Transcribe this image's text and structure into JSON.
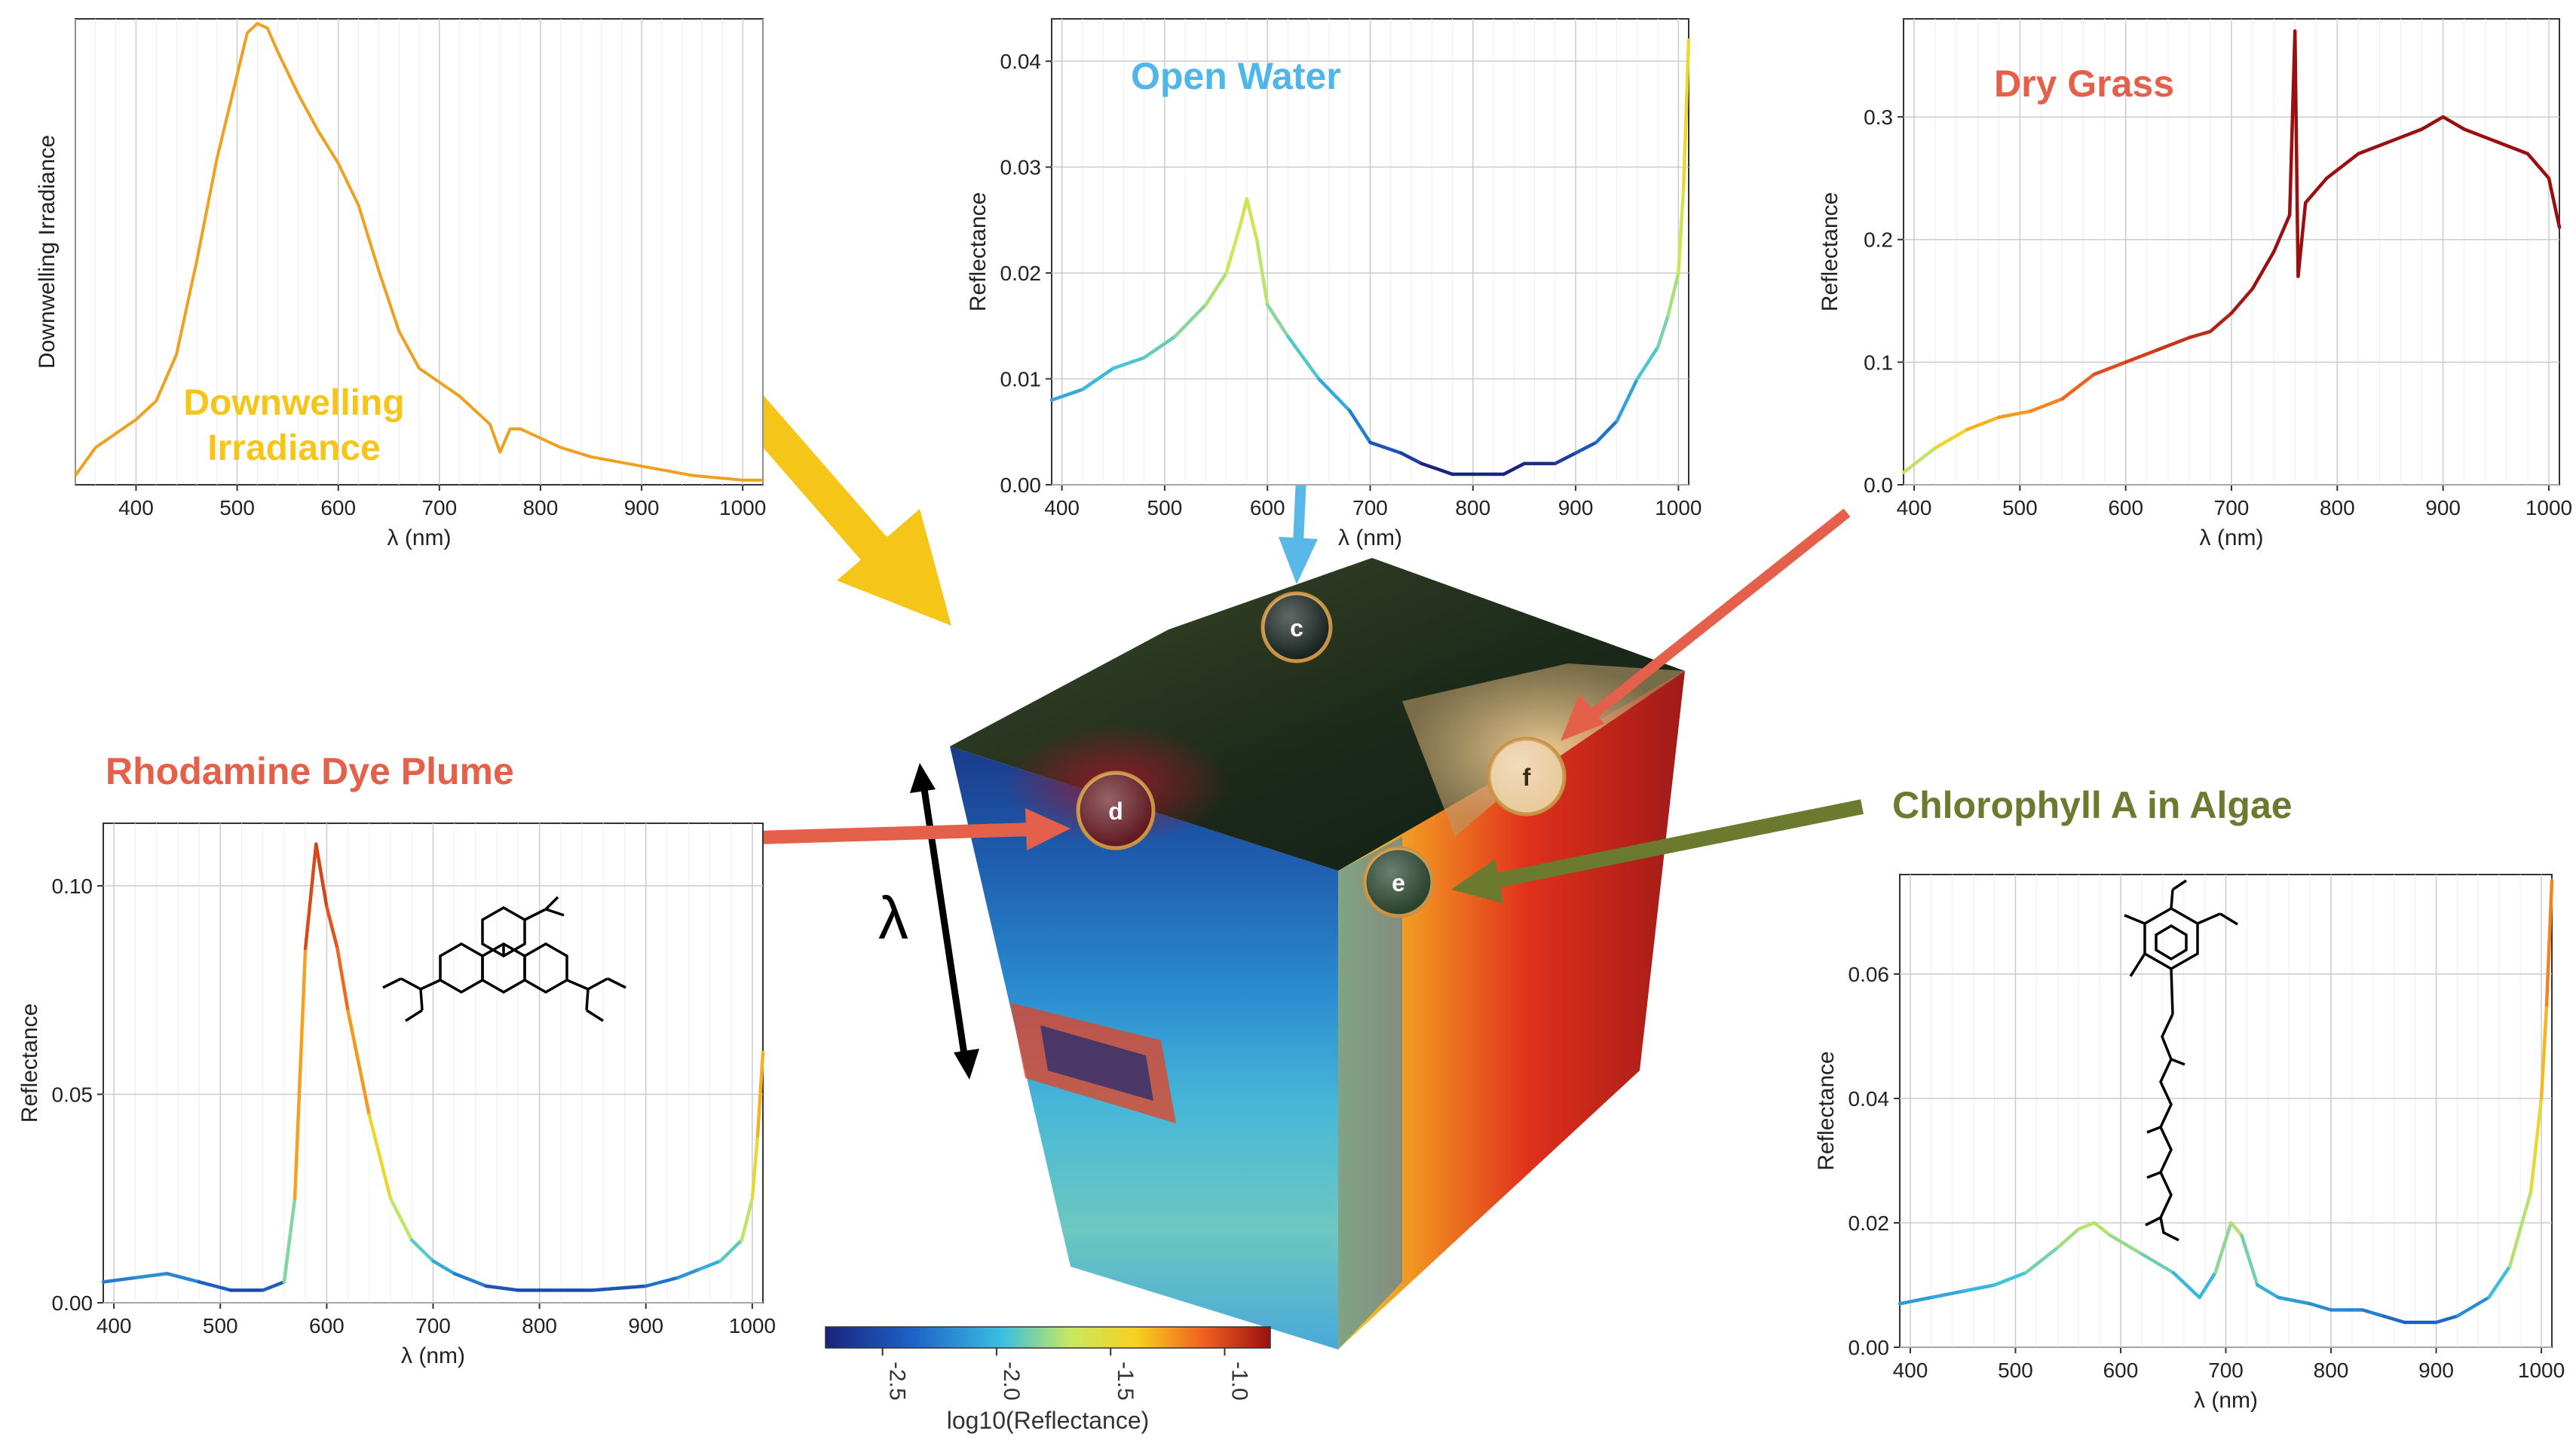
{
  "colors": {
    "irradiance": "#f0a020",
    "sun": "#f5c518",
    "arrow_yellow": "#f5c518",
    "arrow_red": "#e5604a",
    "arrow_blue": "#5ab8e8",
    "arrow_green": "#6b7a2e",
    "title_blue": "#4fb6ea",
    "title_red": "#e5604a",
    "title_green": "#6b7a2e",
    "title_yellow": "#f5c518"
  },
  "labels": {
    "rhodamine": "Rhodamine Dye Plume",
    "chlorophyll": "Chlorophyll A in Algae",
    "lambda": "λ"
  },
  "markers": {
    "c": "c",
    "d": "d",
    "e": "e",
    "f": "f"
  },
  "colorbar": {
    "ticks": [
      "-2.5",
      "-2.0",
      "-1.5",
      "-1.0"
    ],
    "tick_values": [
      -2.5,
      -2.0,
      -1.5,
      -1.0
    ],
    "range": [
      -2.75,
      -0.8
    ],
    "label": "log10(Reflectance)"
  },
  "chart_data": [
    {
      "id": "irradiance",
      "type": "line",
      "title": "Downwelling Irradiance",
      "title_line2": "",
      "xlabel": "λ (nm)",
      "ylabel": "Downwelling Irradiance",
      "xlim": [
        340,
        1020
      ],
      "ylim": [
        0,
        1.0
      ],
      "xticks": [
        400,
        500,
        600,
        700,
        800,
        900,
        1000
      ],
      "yticks": [],
      "annotation": "Downwelling\nIrradiance",
      "color_mode": "solid",
      "series": [
        {
          "name": "irradiance",
          "x": [
            340,
            360,
            380,
            400,
            420,
            440,
            460,
            480,
            500,
            510,
            520,
            530,
            540,
            560,
            580,
            600,
            620,
            640,
            660,
            680,
            700,
            720,
            740,
            750,
            760,
            770,
            780,
            800,
            820,
            850,
            900,
            950,
            1000,
            1020
          ],
          "y": [
            0.02,
            0.08,
            0.11,
            0.14,
            0.18,
            0.28,
            0.48,
            0.7,
            0.88,
            0.97,
            0.99,
            0.98,
            0.93,
            0.84,
            0.76,
            0.69,
            0.6,
            0.46,
            0.33,
            0.25,
            0.22,
            0.19,
            0.15,
            0.13,
            0.07,
            0.12,
            0.12,
            0.1,
            0.08,
            0.06,
            0.04,
            0.02,
            0.01,
            0.01
          ]
        }
      ]
    },
    {
      "id": "open_water",
      "type": "line",
      "title": "Open Water",
      "xlabel": "λ (nm)",
      "ylabel": "Reflectance",
      "xlim": [
        390,
        1010
      ],
      "ylim": [
        0,
        0.044
      ],
      "xticks": [
        400,
        500,
        600,
        700,
        800,
        900,
        1000
      ],
      "yticks": [
        0.0,
        0.01,
        0.02,
        0.03,
        0.04
      ],
      "ytick_labels": [
        "0.00",
        "0.01",
        "0.02",
        "0.03",
        "0.04"
      ],
      "color_mode": "spectral",
      "series": [
        {
          "name": "water",
          "x": [
            390,
            420,
            450,
            480,
            510,
            540,
            560,
            575,
            580,
            590,
            600,
            620,
            650,
            680,
            700,
            730,
            750,
            780,
            800,
            830,
            850,
            880,
            900,
            920,
            940,
            960,
            980,
            990,
            1000,
            1005,
            1010
          ],
          "y": [
            0.008,
            0.009,
            0.011,
            0.012,
            0.014,
            0.017,
            0.02,
            0.025,
            0.027,
            0.023,
            0.017,
            0.014,
            0.01,
            0.007,
            0.004,
            0.003,
            0.002,
            0.001,
            0.001,
            0.001,
            0.002,
            0.002,
            0.003,
            0.004,
            0.006,
            0.01,
            0.013,
            0.016,
            0.02,
            0.028,
            0.042
          ]
        }
      ]
    },
    {
      "id": "dry_grass",
      "type": "line",
      "title": "Dry Grass",
      "xlabel": "λ (nm)",
      "ylabel": "Reflectance",
      "xlim": [
        390,
        1010
      ],
      "ylim": [
        0,
        0.38
      ],
      "xticks": [
        400,
        500,
        600,
        700,
        800,
        900,
        1000
      ],
      "yticks": [
        0.0,
        0.1,
        0.2,
        0.3
      ],
      "ytick_labels": [
        "0.0",
        "0.1",
        "0.2",
        "0.3"
      ],
      "color_mode": "spectral",
      "series": [
        {
          "name": "grass",
          "x": [
            390,
            420,
            450,
            480,
            510,
            540,
            570,
            600,
            630,
            660,
            680,
            700,
            720,
            740,
            755,
            760,
            763,
            770,
            790,
            820,
            850,
            880,
            900,
            920,
            950,
            980,
            1000,
            1010
          ],
          "y": [
            0.01,
            0.03,
            0.045,
            0.055,
            0.06,
            0.07,
            0.09,
            0.1,
            0.11,
            0.12,
            0.125,
            0.14,
            0.16,
            0.19,
            0.22,
            0.37,
            0.17,
            0.23,
            0.25,
            0.27,
            0.28,
            0.29,
            0.3,
            0.29,
            0.28,
            0.27,
            0.25,
            0.21
          ]
        }
      ]
    },
    {
      "id": "rhodamine",
      "type": "line",
      "title": "Rhodamine Dye Plume",
      "xlabel": "λ (nm)",
      "ylabel": "Reflectance",
      "xlim": [
        390,
        1010
      ],
      "ylim": [
        0,
        0.115
      ],
      "xticks": [
        400,
        500,
        600,
        700,
        800,
        900,
        1000
      ],
      "yticks": [
        0.0,
        0.05,
        0.1
      ],
      "ytick_labels": [
        "0.00",
        "0.05",
        "0.10"
      ],
      "color_mode": "spectral",
      "series": [
        {
          "name": "rhodamine",
          "x": [
            390,
            420,
            450,
            480,
            510,
            540,
            560,
            570,
            580,
            590,
            600,
            610,
            620,
            640,
            660,
            680,
            700,
            720,
            750,
            780,
            800,
            850,
            900,
            930,
            950,
            970,
            990,
            1000,
            1005,
            1010
          ],
          "y": [
            0.005,
            0.006,
            0.007,
            0.005,
            0.003,
            0.003,
            0.005,
            0.025,
            0.085,
            0.11,
            0.095,
            0.085,
            0.07,
            0.045,
            0.025,
            0.015,
            0.01,
            0.007,
            0.004,
            0.003,
            0.003,
            0.003,
            0.004,
            0.006,
            0.008,
            0.01,
            0.015,
            0.025,
            0.04,
            0.06
          ]
        }
      ]
    },
    {
      "id": "chlorophyll",
      "type": "line",
      "title": "Chlorophyll A in Algae",
      "xlabel": "λ (nm)",
      "ylabel": "Reflectance",
      "xlim": [
        390,
        1010
      ],
      "ylim": [
        0,
        0.076
      ],
      "xticks": [
        400,
        500,
        600,
        700,
        800,
        900,
        1000
      ],
      "yticks": [
        0.0,
        0.02,
        0.04,
        0.06
      ],
      "ytick_labels": [
        "0.00",
        "0.02",
        "0.04",
        "0.06"
      ],
      "color_mode": "spectral",
      "series": [
        {
          "name": "algae",
          "x": [
            390,
            420,
            450,
            480,
            510,
            540,
            560,
            575,
            590,
            620,
            650,
            675,
            690,
            705,
            715,
            730,
            750,
            780,
            800,
            830,
            850,
            870,
            900,
            920,
            950,
            970,
            990,
            1000,
            1005,
            1010
          ],
          "y": [
            0.007,
            0.008,
            0.009,
            0.01,
            0.012,
            0.016,
            0.019,
            0.02,
            0.018,
            0.015,
            0.012,
            0.008,
            0.012,
            0.02,
            0.018,
            0.01,
            0.008,
            0.007,
            0.006,
            0.006,
            0.005,
            0.004,
            0.004,
            0.005,
            0.008,
            0.013,
            0.025,
            0.04,
            0.055,
            0.075
          ]
        }
      ]
    }
  ]
}
